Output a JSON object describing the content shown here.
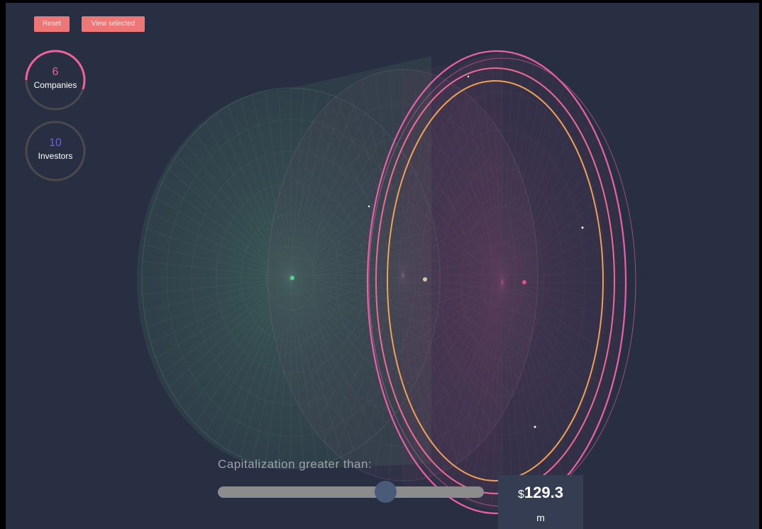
{
  "toolbar": {
    "reset_label": "Reset",
    "view_selected_label": "View selected"
  },
  "counters": {
    "companies": {
      "value": "6",
      "label": "Companies",
      "color": "#f0609a",
      "progress_fraction": 0.55
    },
    "investors": {
      "value": "10",
      "label": "Investors",
      "color": "#6a5cf0",
      "progress_fraction": 0
    }
  },
  "filter": {
    "label": "Capitalization greater than:",
    "currency": "$",
    "value": "129.3",
    "unit": "m",
    "slider_fraction": 0.63
  },
  "colors": {
    "background": "#282f43",
    "button": "#ec7776",
    "ring_pink": "#ec5fa8",
    "ring_orange": "#f3a057",
    "cylinder_green": "#4a8f6f",
    "cylinder_pink": "#b04d7f"
  }
}
